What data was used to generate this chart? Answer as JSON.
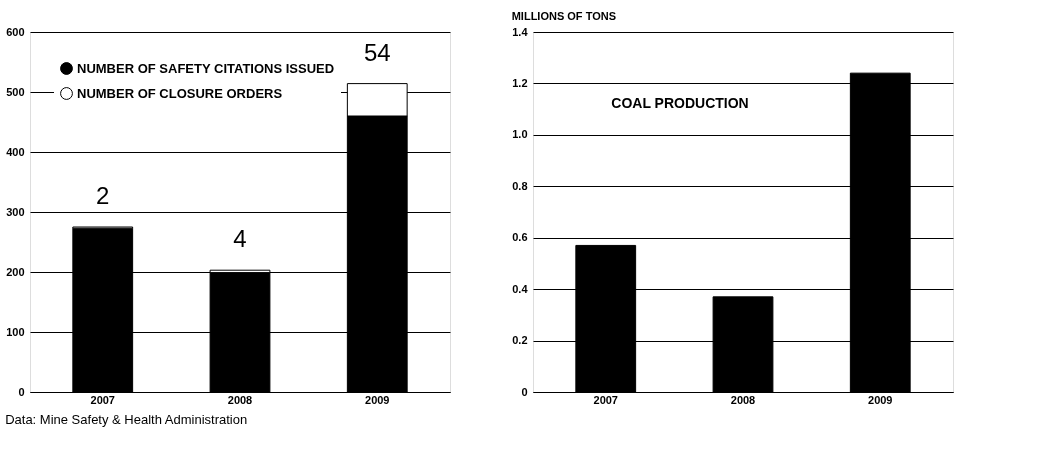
{
  "chart_data": [
    {
      "type": "bar",
      "categories": [
        "2007",
        "2008",
        "2009"
      ],
      "stacked": true,
      "series": [
        {
          "name": "NUMBER OF SAFETY CITATIONS ISSUED",
          "color": "#000000",
          "values": [
            273,
            199,
            460
          ]
        },
        {
          "name": "NUMBER OF CLOSURE ORDERS",
          "color": "#ffffff",
          "values": [
            2,
            4,
            54
          ],
          "value_labels": [
            "2",
            "4",
            "54"
          ]
        }
      ],
      "ylim": [
        0,
        600
      ],
      "yticks": [
        0,
        100,
        200,
        300,
        400,
        500,
        600
      ],
      "grid": "y",
      "legend": "top left",
      "annotations": [
        "Data: Mine Safety & Health Administration"
      ]
    },
    {
      "type": "bar",
      "title": "COAL PRODUCTION",
      "ylabel": "MILLIONS OF TONS",
      "categories": [
        "2007",
        "2008",
        "2009"
      ],
      "values": [
        0.57,
        0.37,
        1.24
      ],
      "color": "#000000",
      "ylim": [
        0,
        1.4
      ],
      "yticks": [
        0,
        0.2,
        0.4,
        0.6,
        0.8,
        {
          "value": 1,
          "label": "1.0"
        },
        1.2,
        1.4
      ],
      "grid": "y",
      "legend": false
    }
  ]
}
